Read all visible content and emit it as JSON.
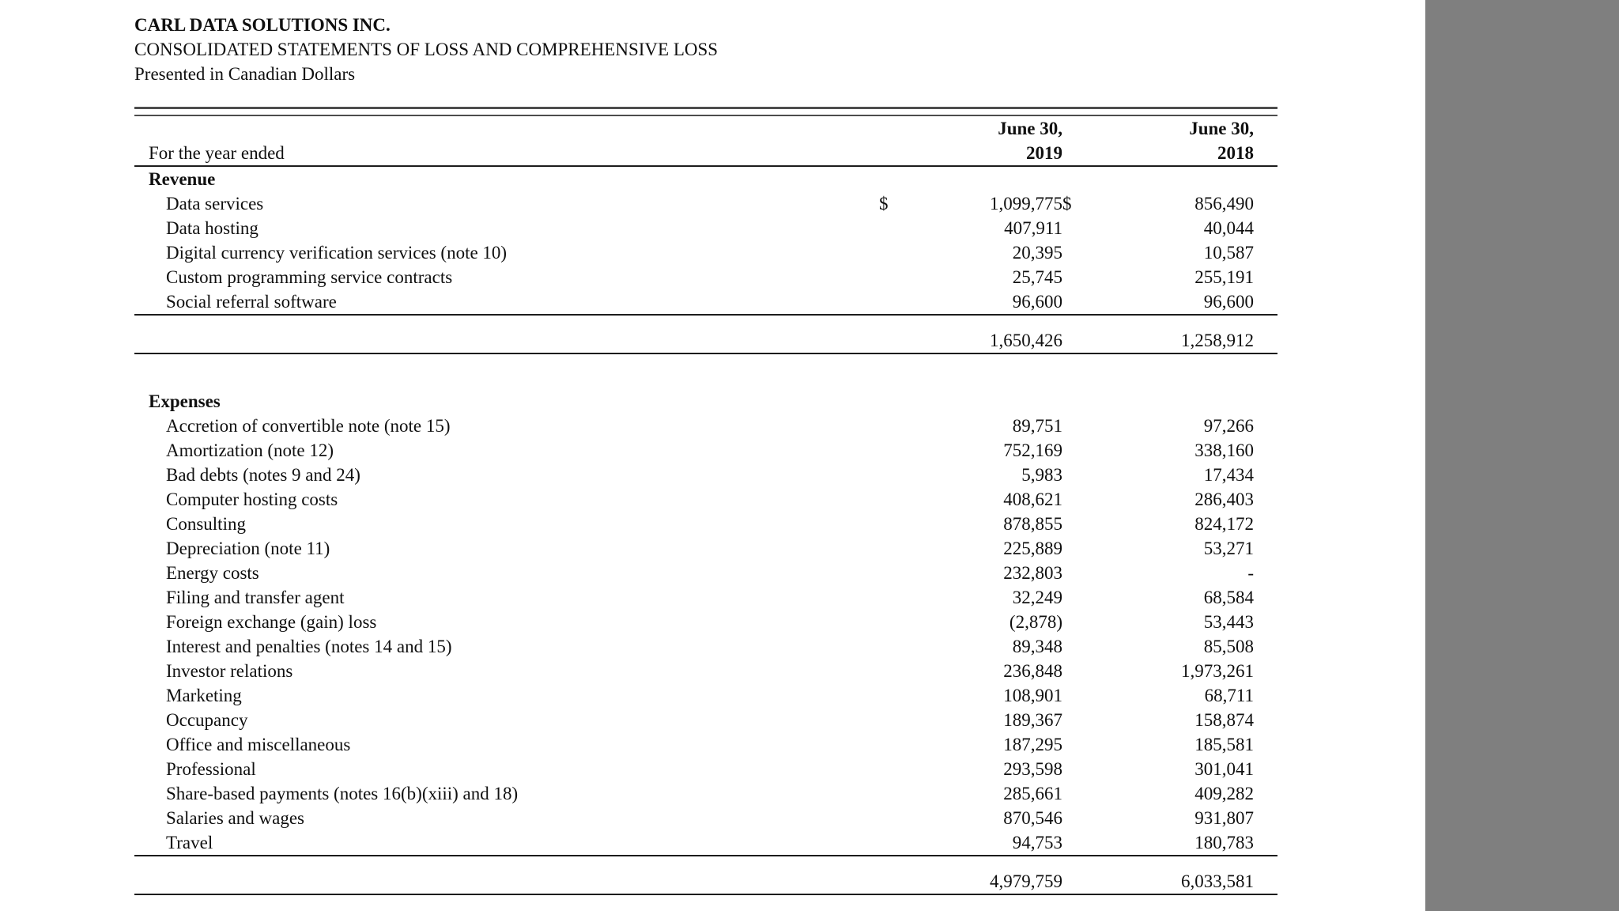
{
  "header": {
    "company": "CARL DATA SOLUTIONS INC.",
    "statement_title": "CONSOLIDATED STATEMENTS OF LOSS AND COMPREHENSIVE LOSS",
    "currency_note": "Presented in Canadian Dollars"
  },
  "table": {
    "period_label": "For the year ended",
    "currency_symbol": "$",
    "columns": [
      {
        "month": "June 30,",
        "year": "2019"
      },
      {
        "month": "June 30,",
        "year": "2018"
      }
    ],
    "sections": [
      {
        "title": "Revenue",
        "rows": [
          {
            "label": "Data services",
            "y2019": "1,099,775",
            "y2018": "856,490",
            "show_currency": true
          },
          {
            "label": "Data hosting",
            "y2019": "407,911",
            "y2018": "40,044"
          },
          {
            "label": "Digital currency verification services (note 10)",
            "y2019": "20,395",
            "y2018": "10,587"
          },
          {
            "label": "Custom programming service contracts",
            "y2019": "25,745",
            "y2018": "255,191"
          },
          {
            "label": "Social referral software",
            "y2019": "96,600",
            "y2018": "96,600"
          }
        ],
        "total": {
          "y2019": "1,650,426",
          "y2018": "1,258,912"
        }
      },
      {
        "title": "Expenses",
        "rows": [
          {
            "label": "Accretion of convertible note (note 15)",
            "y2019": "89,751",
            "y2018": "97,266"
          },
          {
            "label": "Amortization (note 12)",
            "y2019": "752,169",
            "y2018": "338,160"
          },
          {
            "label": "Bad debts (notes 9 and 24)",
            "y2019": "5,983",
            "y2018": "17,434"
          },
          {
            "label": "Computer hosting costs",
            "y2019": "408,621",
            "y2018": "286,403"
          },
          {
            "label": "Consulting",
            "y2019": "878,855",
            "y2018": "824,172"
          },
          {
            "label": "Depreciation (note 11)",
            "y2019": "225,889",
            "y2018": "53,271"
          },
          {
            "label": "Energy costs",
            "y2019": "232,803",
            "y2018": "-"
          },
          {
            "label": "Filing and transfer agent",
            "y2019": "32,249",
            "y2018": "68,584"
          },
          {
            "label": "Foreign exchange (gain) loss",
            "y2019": "(2,878)",
            "y2018": "53,443"
          },
          {
            "label": "Interest and penalties (notes 14 and 15)",
            "y2019": "89,348",
            "y2018": "85,508"
          },
          {
            "label": "Investor relations",
            "y2019": "236,848",
            "y2018": "1,973,261"
          },
          {
            "label": "Marketing",
            "y2019": "108,901",
            "y2018": "68,711"
          },
          {
            "label": "Occupancy",
            "y2019": "189,367",
            "y2018": "158,874"
          },
          {
            "label": "Office and miscellaneous",
            "y2019": "187,295",
            "y2018": "185,581"
          },
          {
            "label": "Professional",
            "y2019": "293,598",
            "y2018": "301,041"
          },
          {
            "label": "Share-based payments (notes 16(b)(xiii) and 18)",
            "y2019": "285,661",
            "y2018": "409,282"
          },
          {
            "label": "Salaries and wages",
            "y2019": "870,546",
            "y2018": "931,807"
          },
          {
            "label": "Travel",
            "y2019": "94,753",
            "y2018": "180,783"
          }
        ],
        "total": {
          "y2019": "4,979,759",
          "y2018": "6,033,581"
        }
      }
    ]
  }
}
